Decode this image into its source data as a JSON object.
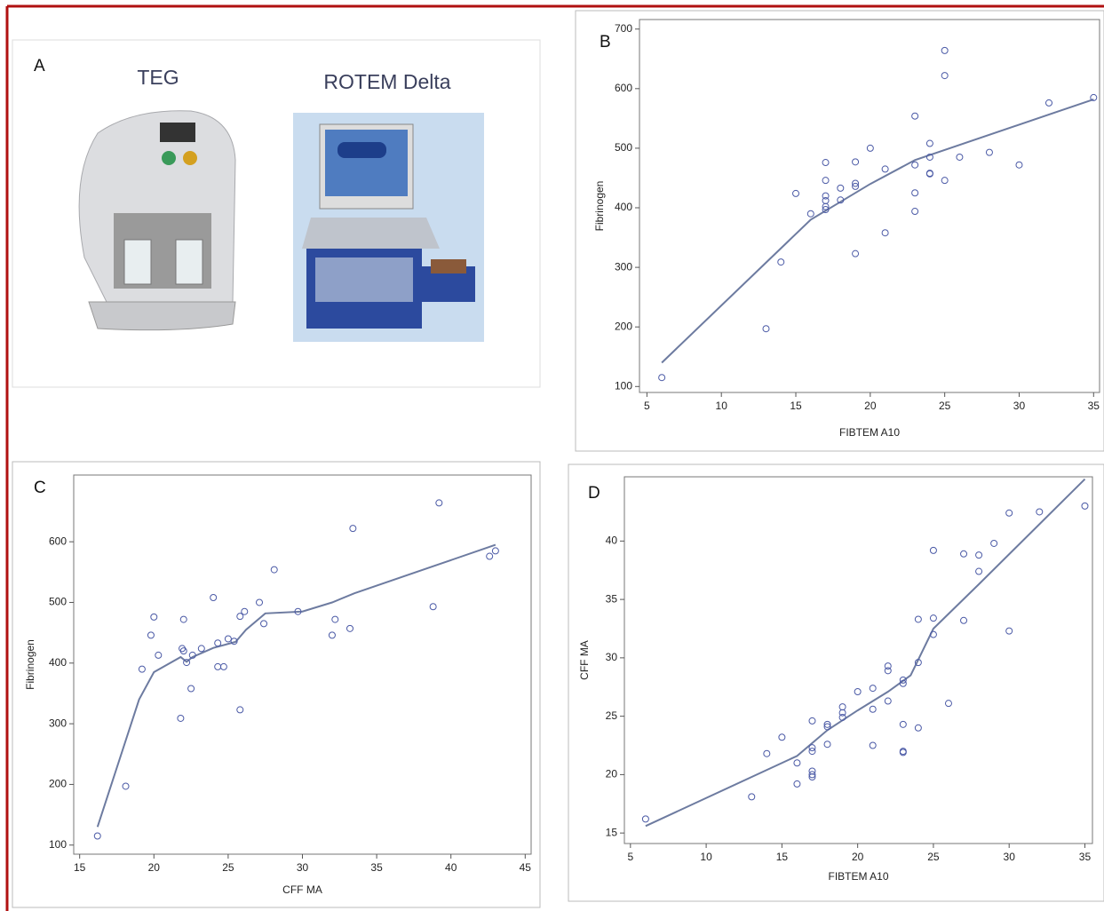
{
  "panel_a": {
    "panel": "A",
    "devices": [
      "TEG",
      "ROTEM Delta"
    ]
  },
  "chart_data": [
    {
      "type": "scatter",
      "panel": "B",
      "xlabel": "FIBTEM A10",
      "ylabel": "Fibrinogen",
      "color": "#4b5aa6",
      "line_color": "#6d7ba0",
      "x": [
        6,
        13,
        14,
        15,
        16,
        17,
        17,
        17,
        17,
        17,
        17,
        18,
        18,
        19,
        19,
        19,
        19,
        20,
        21,
        21,
        23,
        23,
        23,
        23,
        24,
        24,
        24,
        24,
        25,
        25,
        25,
        26,
        28,
        30,
        32,
        35
      ],
      "y": [
        115,
        197,
        309,
        424,
        390,
        476,
        446,
        420,
        412,
        402,
        397,
        433,
        413,
        477,
        441,
        436,
        323,
        500,
        465,
        358,
        554,
        472,
        425,
        394,
        508,
        485,
        458,
        457,
        664,
        622,
        446,
        485,
        493,
        472,
        576,
        585
      ],
      "fit_x": [
        6,
        16,
        18,
        20,
        23,
        35
      ],
      "fit_y": [
        140,
        380,
        410,
        440,
        480,
        582
      ],
      "xlim": [
        4.5,
        35.4
      ],
      "ylim": [
        90,
        716
      ],
      "xticks": [
        5,
        10,
        15,
        20,
        25,
        30,
        35
      ],
      "yticks": [
        100,
        200,
        300,
        400,
        500,
        600,
        700
      ]
    },
    {
      "type": "scatter",
      "panel": "C",
      "xlabel": "CFF MA",
      "ylabel": "Fibrinogen",
      "color": "#4b5aa6",
      "line_color": "#6d7ba0",
      "x": [
        16.2,
        18.1,
        19.2,
        19.8,
        20,
        20.3,
        21.8,
        21.9,
        22,
        22,
        22.2,
        22.5,
        22.6,
        23.2,
        24,
        24.3,
        24.3,
        24.7,
        25,
        25.4,
        25.8,
        25.8,
        26.1,
        27.1,
        27.4,
        28.1,
        29.7,
        32,
        32.2,
        33.2,
        33.4,
        38.8,
        39.2,
        42.6,
        43
      ],
      "y": [
        115,
        197,
        390,
        446,
        476,
        413,
        309,
        424,
        420,
        472,
        401,
        358,
        413,
        424,
        508,
        433,
        394,
        394,
        440,
        436,
        323,
        477,
        485,
        500,
        465,
        554,
        485,
        446,
        472,
        457,
        622,
        493,
        664,
        576,
        585
      ],
      "fit_x": [
        16.2,
        19,
        20,
        21.8,
        22.2,
        22.6,
        24,
        25.5,
        26.2,
        27.5,
        30,
        32,
        33.5,
        43
      ],
      "fit_y": [
        130,
        340,
        385,
        410,
        402,
        410,
        425,
        435,
        455,
        482,
        485,
        500,
        515,
        595
      ],
      "xlim": [
        14.6,
        45.4
      ],
      "ylim": [
        85,
        710
      ],
      "xticks": [
        15,
        20,
        25,
        30,
        35,
        40,
        45
      ],
      "yticks": [
        100,
        200,
        300,
        400,
        500,
        600
      ]
    },
    {
      "type": "scatter",
      "panel": "D",
      "xlabel": "FIBTEM A10",
      "ylabel": "CFF MA",
      "color": "#4b5aa6",
      "line_color": "#6d7ba0",
      "x": [
        6,
        13,
        14,
        15,
        16,
        16,
        17,
        17,
        17,
        17,
        17,
        17,
        18,
        18,
        18,
        19,
        19,
        19,
        20,
        21,
        21,
        21,
        22,
        22,
        22,
        23,
        23,
        23,
        23,
        23,
        24,
        24,
        24,
        25,
        25,
        25,
        26,
        27,
        27,
        28,
        28,
        29,
        30,
        30,
        32,
        35
      ],
      "y": [
        16.2,
        18.1,
        21.8,
        23.2,
        19.2,
        21,
        24.6,
        22.3,
        22,
        20.3,
        20,
        19.8,
        24.3,
        24.1,
        22.6,
        25.8,
        25.3,
        24.9,
        27.1,
        27.4,
        25.6,
        22.5,
        29.3,
        28.9,
        26.3,
        28.1,
        27.8,
        24.3,
        22,
        21.9,
        33.3,
        29.6,
        24,
        39.2,
        33.4,
        32,
        26.1,
        38.9,
        33.2,
        38.8,
        37.4,
        39.8,
        42.4,
        32.3,
        42.5,
        43
      ],
      "fit_x": [
        6,
        16,
        18,
        20,
        22,
        23.5,
        25,
        28,
        35
      ],
      "fit_y": [
        15.6,
        21.6,
        23.8,
        25.5,
        27.1,
        28.5,
        32.5,
        36.3,
        45.3
      ],
      "xlim": [
        4.6,
        35.5
      ],
      "ylim": [
        14.1,
        45.5
      ],
      "xticks": [
        5,
        10,
        15,
        20,
        25,
        30,
        35
      ],
      "yticks": [
        15,
        20,
        25,
        30,
        35,
        40
      ]
    }
  ]
}
